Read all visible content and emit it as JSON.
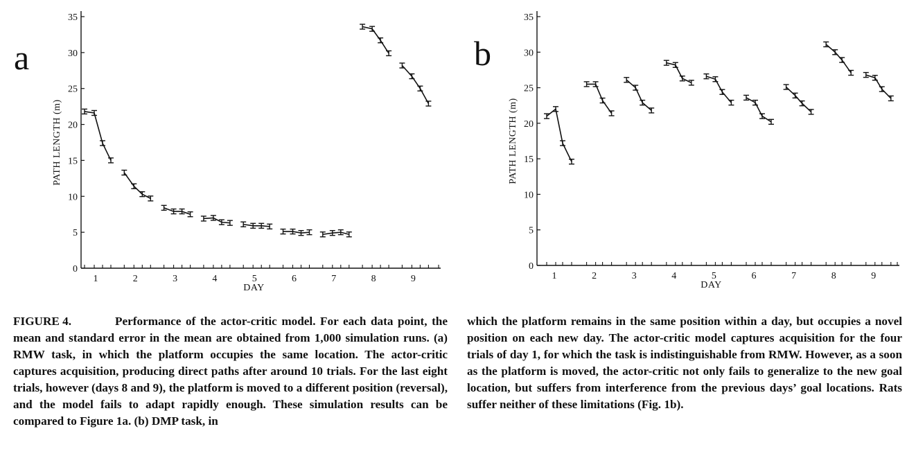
{
  "panels": [
    {
      "letter": "a"
    },
    {
      "letter": "b"
    }
  ],
  "chart_data": [
    {
      "type": "line",
      "panel": "a",
      "xlabel": "DAY",
      "ylabel": "PATH LENGTH (m)",
      "ylim": [
        0,
        35
      ],
      "yticks": [
        "0",
        "5",
        "10",
        "15",
        "20",
        "25",
        "30",
        "35"
      ],
      "day_labels": [
        "1",
        "2",
        "3",
        "4",
        "5",
        "6",
        "7",
        "8",
        "9"
      ],
      "days": [
        {
          "day": 1,
          "values": [
            21.8,
            21.6,
            17.4,
            15.0
          ]
        },
        {
          "day": 2,
          "values": [
            13.3,
            11.4,
            10.3,
            9.7
          ]
        },
        {
          "day": 3,
          "values": [
            8.4,
            7.9,
            7.9,
            7.5
          ]
        },
        {
          "day": 4,
          "values": [
            6.9,
            7.0,
            6.4,
            6.3
          ]
        },
        {
          "day": 5,
          "values": [
            6.1,
            5.9,
            5.9,
            5.8
          ]
        },
        {
          "day": 6,
          "values": [
            5.1,
            5.1,
            4.9,
            5.0
          ]
        },
        {
          "day": 7,
          "values": [
            4.7,
            4.9,
            5.0,
            4.7
          ]
        },
        {
          "day": 8,
          "values": [
            33.6,
            33.3,
            31.7,
            29.9
          ]
        },
        {
          "day": 9,
          "values": [
            28.2,
            26.7,
            25.0,
            22.9
          ]
        }
      ],
      "error_bars": "standard error of the mean",
      "grid": false
    },
    {
      "type": "line",
      "panel": "b",
      "xlabel": "DAY",
      "ylabel": "PATH LENGTH (m)",
      "ylim": [
        0,
        35
      ],
      "yticks": [
        "0",
        "5",
        "10",
        "15",
        "20",
        "25",
        "30",
        "35"
      ],
      "day_labels": [
        "1",
        "2",
        "3",
        "4",
        "5",
        "6",
        "7",
        "8",
        "9"
      ],
      "days": [
        {
          "day": 1,
          "values": [
            21.0,
            22.0,
            17.2,
            14.6
          ]
        },
        {
          "day": 2,
          "values": [
            25.5,
            25.5,
            23.2,
            21.4
          ]
        },
        {
          "day": 3,
          "values": [
            26.1,
            25.0,
            22.9,
            21.8
          ]
        },
        {
          "day": 4,
          "values": [
            28.5,
            28.2,
            26.3,
            25.7
          ]
        },
        {
          "day": 5,
          "values": [
            26.6,
            26.2,
            24.4,
            22.9
          ]
        },
        {
          "day": 6,
          "values": [
            23.6,
            22.9,
            21.0,
            20.2
          ]
        },
        {
          "day": 7,
          "values": [
            25.1,
            23.9,
            22.8,
            21.6
          ]
        },
        {
          "day": 8,
          "values": [
            31.1,
            30.0,
            28.9,
            27.1
          ]
        },
        {
          "day": 9,
          "values": [
            26.8,
            26.4,
            24.8,
            23.5
          ]
        }
      ],
      "error_bars": "standard error of the mean",
      "grid": false
    }
  ],
  "caption": {
    "label": "FIGURE 4.",
    "left_text": "Performance of the actor-critic model. For each data point, the mean and standard error in the mean are obtained from 1,000 simulation runs. (a) RMW task, in which the platform occupies the same location. The actor-critic captures acquisition, producing direct paths after around 10 trials. For the last eight trials, however (days 8 and 9), the platform is moved to a different position (reversal), and the model fails to adapt rapidly enough. These simulation results can be compared to Figure 1a. (b) DMP task, in",
    "right_text": "which the platform remains in the same position within a day, but occupies a novel position on each new day. The actor-critic model captures acquisition for the four trials of day 1, for which the task is indistinguishable from RMW. However, as a soon as the platform is moved, the actor-critic not only fails to generalize to the new goal location, but suffers from interference from the previous days’ goal locations. Rats suffer neither of these limitations (Fig. 1b)."
  }
}
